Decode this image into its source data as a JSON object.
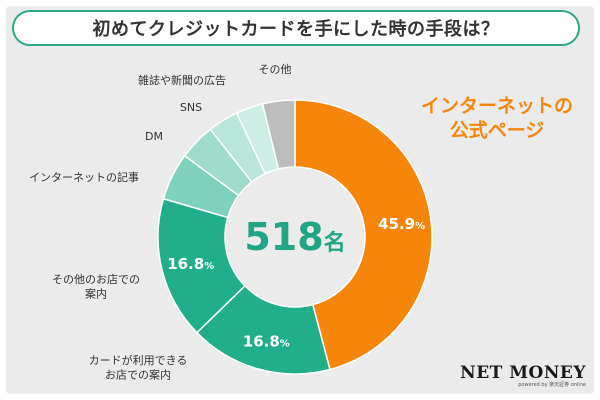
{
  "header": {
    "title": "初めてクレジットカードを手にした時の手段は？"
  },
  "chart_data": {
    "type": "pie",
    "style": "donut",
    "total_label": "518",
    "total_unit": "名",
    "slices": [
      {
        "label": "インターネットの公式ページ",
        "value": 45.9,
        "value_label": "45.9",
        "color": "#f5860a"
      },
      {
        "label": "カードが利用できるお店での案内",
        "value": 16.8,
        "value_label": "16.8",
        "color": "#22ad8b"
      },
      {
        "label": "その他のお店での案内",
        "value": 16.8,
        "value_label": "16.8",
        "color": "#22ad8b"
      },
      {
        "label": "インターネットの記事",
        "value": 5.6,
        "value_label": "",
        "color": "#7fd1bd"
      },
      {
        "label": "DM",
        "value": 4.3,
        "value_label": "",
        "color": "#9fdccc"
      },
      {
        "label": "SNS",
        "value": 3.6,
        "value_label": "",
        "color": "#b9e6da"
      },
      {
        "label": "雑誌や新聞の広告",
        "value": 3.2,
        "value_label": "",
        "color": "#cdeee5"
      },
      {
        "label": "その他",
        "value": 3.8,
        "value_label": "",
        "color": "#bdbdbd"
      }
    ],
    "percent_sign": "%"
  },
  "brand": {
    "name": "NET MONEY",
    "sub": "powered by 楽天証券 online"
  }
}
